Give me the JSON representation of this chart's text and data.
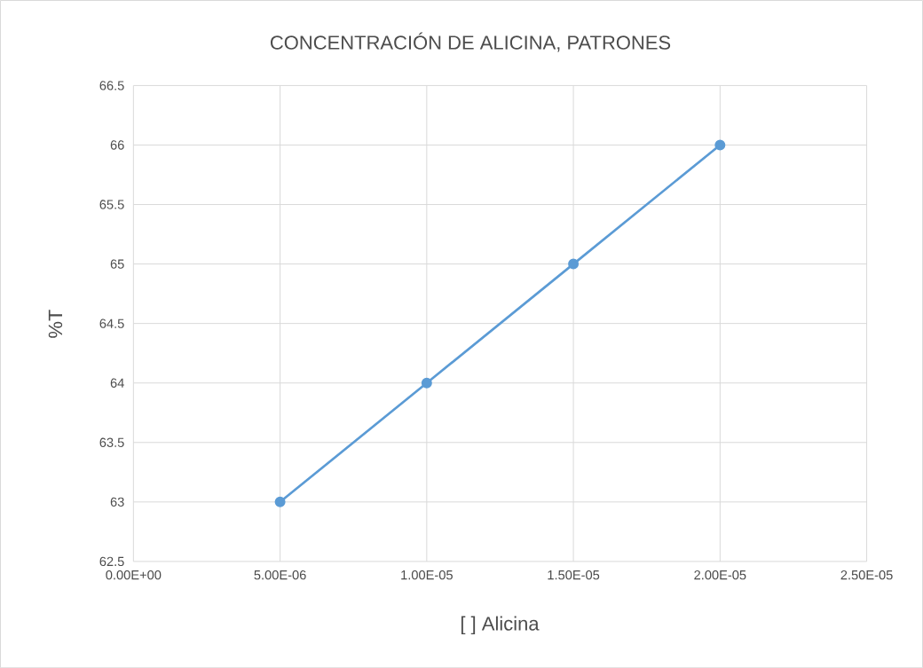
{
  "chart_data": {
    "type": "line",
    "title": "CONCENTRACIÓN DE ALICINA, PATRONES",
    "xlabel": "[ ] Alicina",
    "ylabel": "%T",
    "x": [
      5e-06,
      1e-05,
      1.5e-05,
      2e-05
    ],
    "values": [
      63,
      64,
      65,
      66
    ],
    "color": "#5b9bd5",
    "marker": "circle",
    "line_style": "solid",
    "grid": true,
    "xlim": [
      0,
      2.5e-05
    ],
    "xticks": [
      {
        "value": 0,
        "label": "0.00E+00"
      },
      {
        "value": 5e-06,
        "label": "5.00E-06"
      },
      {
        "value": 1e-05,
        "label": "1.00E-05"
      },
      {
        "value": 1.5e-05,
        "label": "1.50E-05"
      },
      {
        "value": 2e-05,
        "label": "2.00E-05"
      },
      {
        "value": 2.5e-05,
        "label": "2.50E-05"
      }
    ],
    "ylim": [
      62.5,
      66.5
    ],
    "yticks": [
      62.5,
      63,
      63.5,
      64,
      64.5,
      65,
      65.5,
      66,
      66.5
    ]
  }
}
